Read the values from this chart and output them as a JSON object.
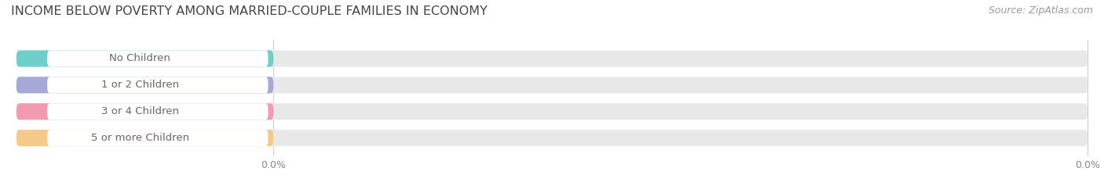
{
  "title": "INCOME BELOW POVERTY AMONG MARRIED-COUPLE FAMILIES IN ECONOMY",
  "source": "Source: ZipAtlas.com",
  "categories": [
    "No Children",
    "1 or 2 Children",
    "3 or 4 Children",
    "5 or more Children"
  ],
  "values": [
    0.0,
    0.0,
    0.0,
    0.0
  ],
  "bar_colors": [
    "#6ececa",
    "#a8a8d8",
    "#f29ab0",
    "#f5c98a"
  ],
  "bar_bg_color": "#e8e8e8",
  "label_bg_color": "#ffffff",
  "title_fontsize": 11.5,
  "source_fontsize": 9,
  "tick_fontsize": 9,
  "label_fontsize": 9.5,
  "value_fontsize": 9,
  "background_color": "#ffffff",
  "grid_color": "#cccccc",
  "x_tick_labels": [
    "0.0%",
    "0.0%"
  ]
}
